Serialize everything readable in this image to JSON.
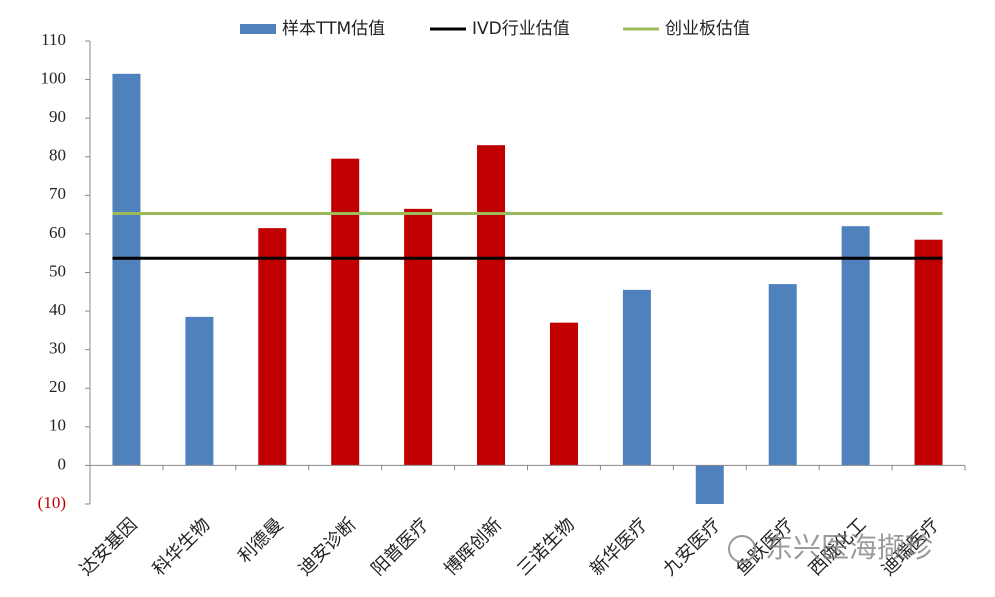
{
  "chart_data": {
    "type": "bar",
    "categories": [
      "达安基因",
      "科华生物",
      "利德曼",
      "迪安诊断",
      "阳普医疗",
      "博晖创新",
      "三诺生物",
      "新华医疗",
      "九安医疗",
      "鱼跃医疗",
      "西陇化工",
      "迪瑞医疗"
    ],
    "series": [
      {
        "name": "样本TTM估值",
        "color": "#4f81bd",
        "type": "bar",
        "values": [
          101.5,
          38.5,
          61.5,
          79.5,
          66.5,
          83,
          37,
          45.5,
          -10,
          47,
          62,
          58.5
        ],
        "colors": [
          "#4f81bd",
          "#4f81bd",
          "#c00000",
          "#c00000",
          "#c00000",
          "#c00000",
          "#c00000",
          "#4f81bd",
          "#4f81bd",
          "#4f81bd",
          "#4f81bd",
          "#c00000"
        ]
      },
      {
        "name": "IVD行业估值",
        "color": "#000000",
        "type": "line",
        "values": [
          53.7,
          53.7,
          53.7,
          53.7,
          53.7,
          53.7,
          53.7,
          53.7,
          53.7,
          53.7,
          53.7,
          53.7
        ]
      },
      {
        "name": "创业板估值",
        "color": "#9bbb59",
        "type": "line",
        "values": [
          65.3,
          65.3,
          65.3,
          65.3,
          65.3,
          65.3,
          65.3,
          65.3,
          65.3,
          65.3,
          65.3,
          65.3
        ]
      }
    ],
    "ylim": [
      -10,
      110
    ],
    "yticks": [
      {
        "value": -10,
        "label": "(10)"
      },
      0,
      10,
      20,
      30,
      40,
      50,
      60,
      70,
      80,
      90,
      100,
      110
    ],
    "negative_tick_color": "#c00000",
    "watermark": "东兴医海撷珍"
  }
}
